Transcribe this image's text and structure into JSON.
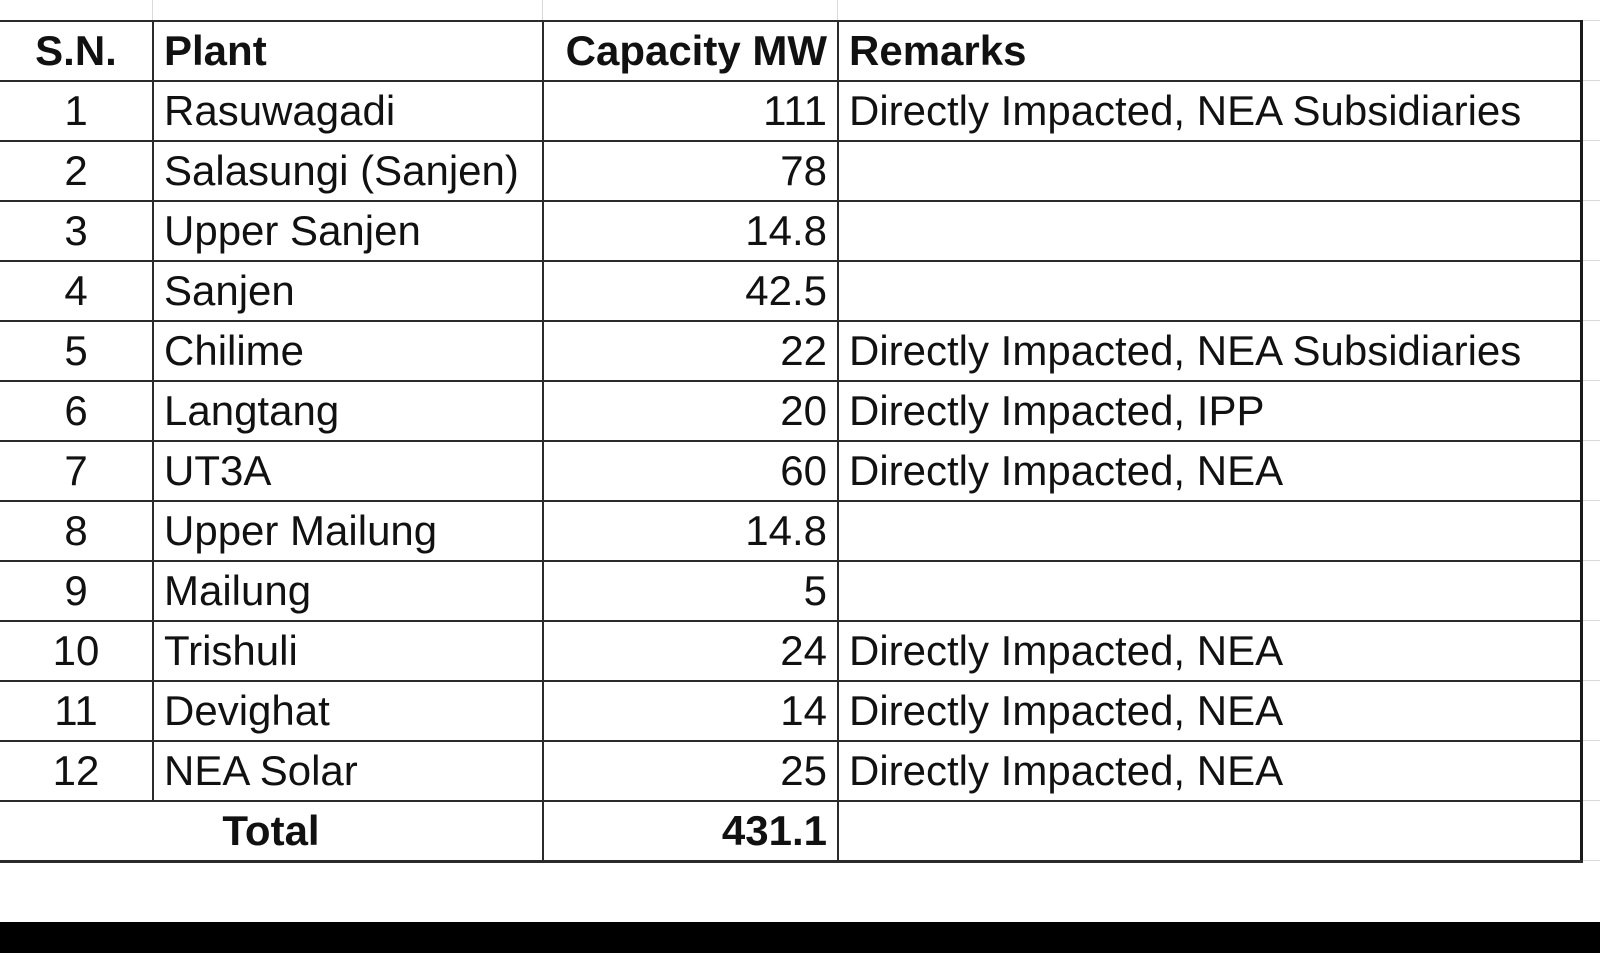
{
  "table": {
    "headers": [
      "S.N.",
      "Plant",
      "Capacity MW",
      "Remarks"
    ],
    "rows": [
      {
        "sn": "1",
        "plant": "Rasuwagadi",
        "capacity": "111",
        "remarks": "Directly Impacted, NEA Subsidiaries"
      },
      {
        "sn": "2",
        "plant": "Salasungi (Sanjen)",
        "capacity": "78",
        "remarks": ""
      },
      {
        "sn": "3",
        "plant": "Upper Sanjen",
        "capacity": "14.8",
        "remarks": ""
      },
      {
        "sn": "4",
        "plant": "Sanjen",
        "capacity": "42.5",
        "remarks": ""
      },
      {
        "sn": "5",
        "plant": "Chilime",
        "capacity": "22",
        "remarks": "Directly Impacted, NEA Subsidiaries"
      },
      {
        "sn": "6",
        "plant": "Langtang",
        "capacity": "20",
        "remarks": "Directly Impacted, IPP"
      },
      {
        "sn": "7",
        "plant": "UT3A",
        "capacity": "60",
        "remarks": "Directly Impacted, NEA"
      },
      {
        "sn": "8",
        "plant": "Upper Mailung",
        "capacity": "14.8",
        "remarks": ""
      },
      {
        "sn": "9",
        "plant": "Mailung",
        "capacity": "5",
        "remarks": ""
      },
      {
        "sn": "10",
        "plant": "Trishuli",
        "capacity": "24",
        "remarks": "Directly Impacted, NEA"
      },
      {
        "sn": "11",
        "plant": "Devighat",
        "capacity": "14",
        "remarks": "Directly Impacted, NEA"
      },
      {
        "sn": "12",
        "plant": "NEA Solar",
        "capacity": "25",
        "remarks": "Directly Impacted, NEA"
      }
    ],
    "total": {
      "label": "Total",
      "capacity": "431.1"
    }
  }
}
